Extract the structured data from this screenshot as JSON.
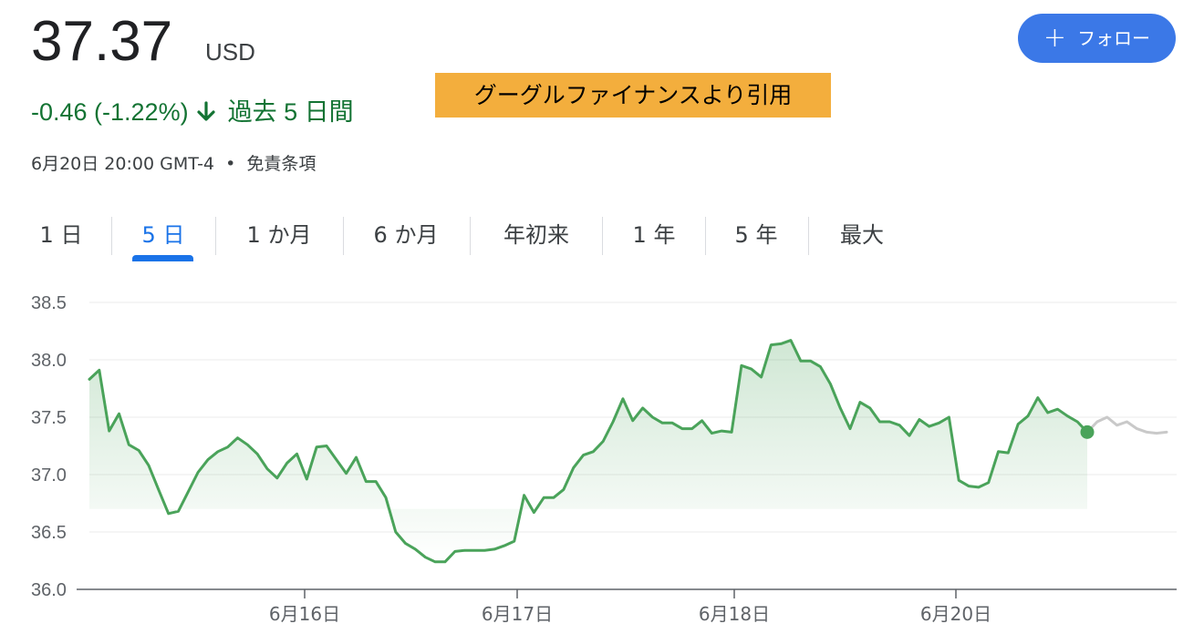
{
  "quote": {
    "price": "37.37",
    "currency": "USD",
    "change": "-0.46 (-1.22%)",
    "period": "過去 5 日間",
    "timestamp": "6月20日 20:00 GMT-4",
    "separator": "•",
    "disclaimer": "免責条項",
    "change_color": "#137333"
  },
  "banner": {
    "text": "グーグルファイナンスより引用",
    "color": "#f3ae3d"
  },
  "follow_button": {
    "icon": "plus-icon",
    "label": "フォロー",
    "color": "#3b78e7"
  },
  "tabs": [
    {
      "label": "1 日",
      "active": false
    },
    {
      "label": "5 日",
      "active": true
    },
    {
      "label": "1 か月",
      "active": false
    },
    {
      "label": "6 か月",
      "active": false
    },
    {
      "label": "年初来",
      "active": false
    },
    {
      "label": "1 年",
      "active": false
    },
    {
      "label": "5 年",
      "active": false
    },
    {
      "label": "最大",
      "active": false
    }
  ],
  "chart_data": {
    "type": "area",
    "ylim": [
      36.0,
      38.5
    ],
    "yticks": [
      "38.5",
      "38.0",
      "37.5",
      "37.0",
      "36.5",
      "36.0"
    ],
    "xticks": [
      "6月16日",
      "6月17日",
      "6月18日",
      "6月20日"
    ],
    "line_color": "#4aa35a",
    "projection_color": "#c9c9c9",
    "grid": true,
    "series": [
      {
        "values": [
          37.83,
          37.91,
          37.38,
          37.53,
          37.26,
          37.21,
          37.08,
          36.87,
          36.66,
          36.68,
          36.85,
          37.02,
          37.13,
          37.2,
          37.24,
          37.32,
          37.26,
          37.18,
          37.05,
          36.97,
          37.1,
          37.18,
          36.96,
          37.24,
          37.25,
          37.13,
          37.01,
          37.15,
          36.94,
          36.94,
          36.8,
          36.5,
          36.4,
          36.35,
          36.28,
          36.24,
          36.24,
          36.33,
          36.34,
          36.34,
          36.34,
          36.35,
          36.38,
          36.42,
          36.82,
          36.67,
          36.8,
          36.8,
          36.87,
          37.06,
          37.17,
          37.2,
          37.29,
          37.46,
          37.66,
          37.47,
          37.58,
          37.5,
          37.45,
          37.45,
          37.4,
          37.4,
          37.47,
          37.36,
          37.38,
          37.37,
          37.95,
          37.92,
          37.85,
          38.13,
          38.14,
          38.17,
          37.99,
          37.99,
          37.94,
          37.79,
          37.58,
          37.4,
          37.63,
          37.58,
          37.46,
          37.46,
          37.43,
          37.34,
          37.48,
          37.42,
          37.45,
          37.5,
          36.95,
          36.9,
          36.89,
          36.93,
          37.2,
          37.19,
          37.44,
          37.51,
          37.67,
          37.54,
          37.57,
          37.51,
          37.46,
          37.37
        ]
      },
      {
        "values": [
          37.37,
          37.46,
          37.5,
          37.43,
          37.46,
          37.4,
          37.37,
          37.36,
          37.37
        ]
      }
    ]
  }
}
